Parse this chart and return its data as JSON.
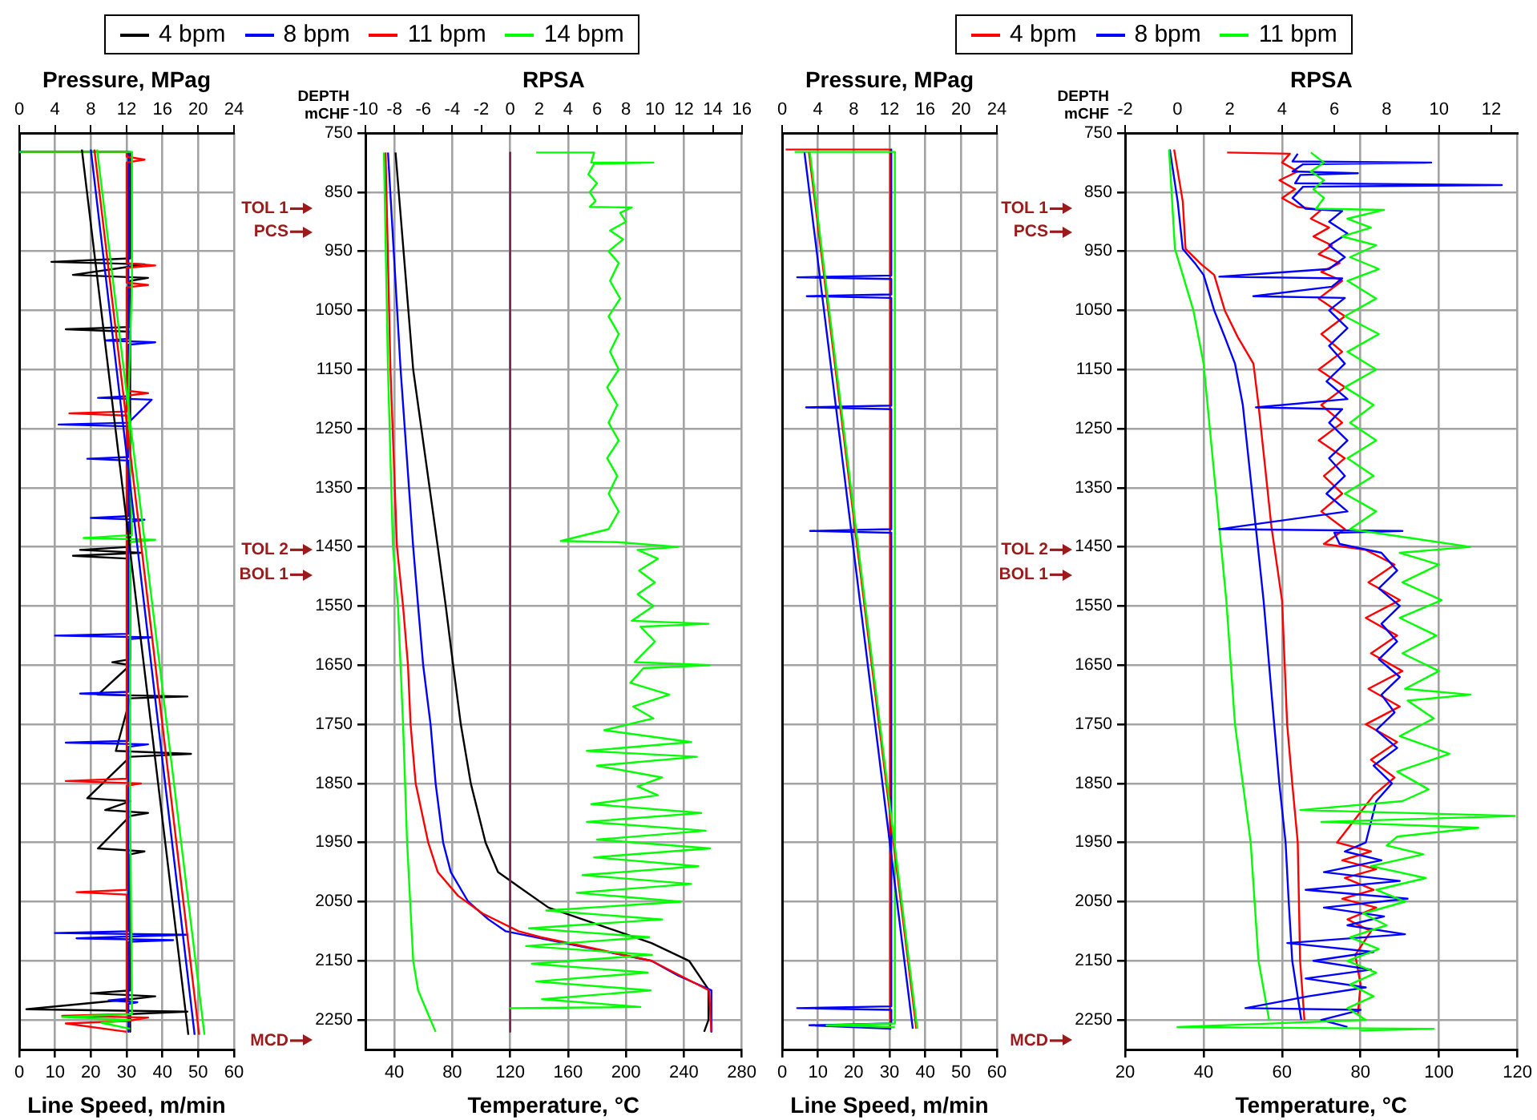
{
  "chart_data": [
    {
      "type": "line",
      "xlabel": "Line Speed, m/min",
      "x2label": "Pressure, MPag",
      "xlim": [
        0,
        60
      ],
      "xticks": [
        0,
        10,
        20,
        30,
        40,
        50,
        60
      ],
      "x2lim": [
        0,
        24
      ],
      "x2ticks": [
        0,
        4,
        8,
        12,
        16,
        20,
        24
      ],
      "ylim": [
        2300,
        750
      ],
      "yticks": [
        750,
        850,
        950,
        1050,
        1150,
        1250,
        1350,
        1450,
        1550,
        1650,
        1750,
        1850,
        1950,
        2050,
        2150,
        2250
      ],
      "grid": true,
      "legend": "top",
      "tick_labels": "x",
      "series": [
        {
          "name": "4 bpm",
          "color": "#000000",
          "x": [
            0,
            31,
            31,
            9,
            35,
            31,
            15,
            36,
            31,
            31,
            13,
            31,
            31,
            17,
            34,
            15,
            31,
            31,
            26,
            31,
            22,
            47,
            31,
            27,
            48,
            31,
            19,
            31,
            24,
            36,
            31,
            22,
            35,
            31,
            31,
            20,
            38,
            31,
            2,
            47,
            31,
            31
          ],
          "values": [
            782,
            782,
            962,
            968,
            972,
            976,
            990,
            995,
            1000,
            1078,
            1082,
            1086,
            1450,
            1455,
            1460,
            1465,
            1470,
            1640,
            1645,
            1650,
            1700,
            1703,
            1706,
            1795,
            1800,
            1805,
            1875,
            1880,
            1895,
            1900,
            1905,
            1960,
            1965,
            1970,
            2200,
            2205,
            2210,
            2215,
            2232,
            2236,
            2240,
            2270
          ]
        },
        {
          "name": "8 bpm",
          "color": "#0000ff",
          "x": [
            0,
            30.5,
            30.5,
            24,
            38,
            30.5,
            30.5,
            22,
            37,
            30.5,
            11,
            30.5,
            30.5,
            19,
            30.5,
            30.5,
            20,
            35,
            30.5,
            30.5,
            10,
            37,
            30.5,
            30.5,
            17,
            30.5,
            30.5,
            13,
            36,
            30.5,
            30.5,
            10,
            47,
            30.5,
            16,
            43,
            30.5,
            30.5,
            25,
            33,
            30.5,
            30.5
          ],
          "values": [
            782,
            782,
            1098,
            1101,
            1104,
            1108,
            1195,
            1198,
            1201,
            1240,
            1243,
            1246,
            1298,
            1301,
            1304,
            1398,
            1401,
            1404,
            1408,
            1597,
            1600,
            1603,
            1606,
            1695,
            1698,
            1701,
            1778,
            1781,
            1784,
            1788,
            2100,
            2103,
            2106,
            2109,
            2112,
            2115,
            2118,
            2214,
            2217,
            2220,
            2223,
            2270
          ]
        },
        {
          "name": "11 bpm",
          "color": "#ff0000",
          "x": [
            1,
            30,
            30,
            35,
            30,
            30,
            38,
            30,
            30,
            36,
            30,
            30,
            36,
            30,
            30,
            14,
            30,
            30,
            13,
            34,
            30,
            30,
            16,
            30,
            30,
            12,
            36,
            30,
            13,
            30
          ],
          "values": [
            782,
            782,
            790,
            795,
            800,
            970,
            974,
            978,
            1003,
            1007,
            1011,
            1186,
            1190,
            1194,
            1221,
            1224,
            1228,
            1842,
            1846,
            1850,
            1854,
            2030,
            2034,
            2038,
            2240,
            2243,
            2246,
            2252,
            2256,
            2270
          ]
        },
        {
          "name": "14 bpm",
          "color": "#00ff00",
          "x": [
            0,
            31.5,
            31.5,
            30.5,
            31.5,
            18,
            38,
            31,
            31,
            31.5,
            12,
            31,
            23,
            31
          ],
          "values": [
            782,
            782,
            1000,
            1200,
            1430,
            1435,
            1438,
            1442,
            1900,
            2240,
            2245,
            2250,
            2255,
            2265
          ]
        },
        {
          "color": "#000000",
          "axis": "x2",
          "x": [
            7.0,
            18.9
          ],
          "values": [
            778,
            2275
          ]
        },
        {
          "color": "#0000ff",
          "axis": "x2",
          "x": [
            8.0,
            19.6
          ],
          "values": [
            778,
            2275
          ]
        },
        {
          "color": "#ff0000",
          "axis": "x2",
          "x": [
            8.4,
            20.1
          ],
          "values": [
            778,
            2275
          ]
        },
        {
          "color": "#00ff00",
          "axis": "x2",
          "x": [
            8.7,
            20.7
          ],
          "values": [
            778,
            2275
          ]
        }
      ]
    },
    {
      "type": "line",
      "xlabel": "Temperature, °C",
      "x2label": "RPSA",
      "ylabel": "DEPTH mCHF",
      "xlim": [
        20,
        280
      ],
      "xticks": [
        40,
        80,
        120,
        160,
        200,
        240,
        280
      ],
      "x2lim": [
        -10,
        16
      ],
      "x2ticks": [
        -10,
        -8,
        -6,
        -4,
        -2,
        0,
        2,
        4,
        6,
        8,
        10,
        12,
        14,
        16
      ],
      "ylim": [
        2300,
        750
      ],
      "yticks": [
        750,
        850,
        950,
        1050,
        1150,
        1250,
        1350,
        1450,
        1550,
        1650,
        1750,
        1850,
        1950,
        2050,
        2150,
        2250
      ],
      "grid": true,
      "ref_lines": [
        {
          "axis": "y",
          "value": 878,
          "label": "TOL 1",
          "color": "#9b1b1b"
        },
        {
          "axis": "y",
          "value": 917,
          "label": "PCS",
          "color": "#9b1b1b"
        },
        {
          "axis": "y",
          "value": 1455,
          "label": "TOL 2",
          "color": "#9b1b1b"
        },
        {
          "axis": "y",
          "value": 1497,
          "label": "BOL 1",
          "color": "#9b1b1b"
        },
        {
          "axis": "y",
          "value": 2285,
          "label": "MCD",
          "color": "#9b1b1b"
        }
      ],
      "series": [
        {
          "color": "#000000",
          "x": [
            40.8,
            53,
            70,
            75.5,
            80.6,
            85.9,
            92.8,
            103,
            111.6,
            129,
            146.5,
            217.6,
            243.6,
            257.4,
            257,
            254
          ],
          "values": [
            783,
            1150,
            1450,
            1550,
            1650,
            1750,
            1850,
            1950,
            2000,
            2030,
            2060,
            2120,
            2150,
            2200,
            2250,
            2270
          ]
        },
        {
          "color": "#0000ff",
          "x": [
            35.6,
            44.3,
            53,
            56.4,
            59.9,
            65,
            68.5,
            73.7,
            79,
            91,
            105,
            117,
            217.6,
            236,
            259,
            259
          ],
          "values": [
            783,
            1150,
            1450,
            1550,
            1650,
            1750,
            1850,
            1950,
            2000,
            2050,
            2080,
            2100,
            2150,
            2175,
            2200,
            2270
          ]
        },
        {
          "color": "#ff0000",
          "x": [
            33.9,
            37.3,
            41.8,
            46,
            49.4,
            51.2,
            54.7,
            63.4,
            70,
            84,
            101,
            125.8,
            141,
            217.6,
            257.4,
            259
          ],
          "values": [
            783,
            1150,
            1450,
            1550,
            1650,
            1750,
            1850,
            1950,
            2000,
            2040,
            2070,
            2100,
            2110,
            2150,
            2200,
            2270
          ]
        },
        {
          "color": "#00ff00",
          "x": [
            32.8,
            35.6,
            39,
            42.5,
            46,
            48.8,
            53,
            56.4,
            65,
            68.5
          ],
          "values": [
            783,
            1150,
            1450,
            1550,
            1750,
            1950,
            2150,
            2200,
            2250,
            2270
          ]
        },
        {
          "color": "#7a1a4a",
          "axis": "x2",
          "x": [
            0,
            0
          ],
          "values": [
            783,
            2270
          ]
        },
        {
          "color": "#00ff00",
          "axis": "x2",
          "x": [
            1.8,
            5.8,
            5.6,
            9.9,
            5.8,
            5.4,
            6.0,
            5.5,
            5.9,
            5.5,
            8.4,
            7.6,
            8.0,
            6.9,
            7.8,
            6.8,
            7.5,
            6.9,
            7.6,
            6.8,
            7.5,
            6.9,
            7.5,
            6.7,
            7.4,
            6.8,
            7.5,
            6.7,
            7.4,
            6.8,
            7.5,
            6.8,
            3.5,
            7.4,
            11.6,
            8.8,
            10.2,
            8.9,
            10.0,
            8.8,
            9.9,
            8.4,
            13.7,
            9.0,
            10.0,
            8.6,
            13.8,
            9.2,
            8.3,
            11.0,
            8.5,
            9.9,
            6.5,
            12.5,
            5.3,
            12.9,
            6.0,
            10.5,
            8.8,
            10.2,
            5.6,
            13.2,
            5.3,
            13.5,
            6.0,
            13.8,
            5.8,
            13.0,
            5.0,
            12.5,
            4.6,
            11.8,
            2.5,
            10.5,
            1.3,
            9.6,
            1.1,
            9.8,
            1.5,
            9.5,
            1.8,
            9.7,
            2.2,
            9.0,
            0,
            4.0
          ],
          "values": [
            783,
            783,
            800,
            800,
            802,
            820,
            835,
            850,
            865,
            875,
            876,
            885,
            900,
            915,
            930,
            950,
            970,
            1000,
            1030,
            1060,
            1090,
            1120,
            1150,
            1180,
            1210,
            1240,
            1270,
            1300,
            1330,
            1360,
            1390,
            1420,
            1440,
            1442,
            1450,
            1455,
            1470,
            1490,
            1510,
            1530,
            1550,
            1575,
            1580,
            1585,
            1610,
            1645,
            1650,
            1655,
            1680,
            1700,
            1720,
            1740,
            1760,
            1780,
            1795,
            1805,
            1820,
            1840,
            1855,
            1870,
            1885,
            1900,
            1915,
            1930,
            1945,
            1960,
            1975,
            1990,
            2005,
            2020,
            2035,
            2050,
            2065,
            2080,
            2095,
            2110,
            2125,
            2140,
            2155,
            2170,
            2185,
            2200,
            2215,
            2228,
            2230,
            2230
          ]
        }
      ]
    },
    {
      "type": "line",
      "xlabel": "Line Speed, m/min",
      "x2label": "Pressure, MPag",
      "xlim": [
        0,
        60
      ],
      "xticks": [
        0,
        10,
        20,
        30,
        40,
        50,
        60
      ],
      "x2lim": [
        0,
        24
      ],
      "x2ticks": [
        0,
        4,
        8,
        12,
        16,
        20,
        24
      ],
      "ylim": [
        2300,
        750
      ],
      "yticks": [
        750,
        850,
        950,
        1050,
        1150,
        1250,
        1350,
        1450,
        1550,
        1650,
        1750,
        1850,
        1950,
        2050,
        2150,
        2250
      ],
      "grid": true,
      "legend": "top",
      "tick_labels": "x",
      "series": [
        {
          "name": "4 bpm",
          "color": "#ff0000",
          "x": [
            1,
            30.2,
            30.2
          ],
          "values": [
            778,
            778,
            2265
          ]
        },
        {
          "name": "8 bpm",
          "color": "#0000ff",
          "x": [
            30.5,
            30.5,
            4.2,
            30.5,
            30.5,
            6.9,
            30.5,
            30.5,
            6.7,
            30.5,
            30.5,
            7.8,
            30.5,
            30.5,
            4.2,
            30.5,
            30.5,
            7.6,
            30.5
          ],
          "values": [
            778,
            991,
            994,
            997,
            1023,
            1026,
            1029,
            1211,
            1214,
            1217,
            1420,
            1423,
            1426,
            2227,
            2230,
            2233,
            2256,
            2259,
            2265
          ]
        },
        {
          "name": "11 bpm",
          "color": "#00ff00",
          "x": [
            3.5,
            31.5,
            31.5,
            12.4,
            31.5
          ],
          "values": [
            782,
            782,
            2256,
            2259,
            2262
          ]
        },
        {
          "color": "#ff0000",
          "axis": "x2",
          "x": [
            3.0,
            15.0
          ],
          "values": [
            783,
            2265
          ]
        },
        {
          "color": "#0000ff",
          "axis": "x2",
          "x": [
            2.5,
            14.6
          ],
          "values": [
            783,
            2265
          ]
        },
        {
          "color": "#00ff00",
          "axis": "x2",
          "x": [
            3.1,
            15.1
          ],
          "values": [
            783,
            2265
          ]
        }
      ]
    },
    {
      "type": "line",
      "xlabel": "Temperature, °C",
      "x2label": "RPSA",
      "ylabel": "DEPTH mCHF",
      "xlim": [
        20,
        120
      ],
      "xticks": [
        20,
        40,
        60,
        80,
        100,
        120
      ],
      "x2lim": [
        -2,
        13
      ],
      "x2ticks": [
        -2,
        0,
        2,
        4,
        6,
        8,
        10,
        12
      ],
      "ylim": [
        2300,
        750
      ],
      "yticks": [
        750,
        850,
        950,
        1050,
        1150,
        1250,
        1350,
        1450,
        1550,
        1650,
        1750,
        1850,
        1950,
        2050,
        2150,
        2250
      ],
      "grid": true,
      "ref_lines": [
        {
          "axis": "y",
          "value": 878,
          "label": "TOL 1",
          "color": "#9b1b1b"
        },
        {
          "axis": "y",
          "value": 917,
          "label": "PCS",
          "color": "#9b1b1b"
        },
        {
          "axis": "y",
          "value": 1455,
          "label": "TOL 2",
          "color": "#9b1b1b"
        },
        {
          "axis": "y",
          "value": 1497,
          "label": "BOL 1",
          "color": "#9b1b1b"
        },
        {
          "axis": "y",
          "value": 2285,
          "label": "MCD",
          "color": "#9b1b1b"
        }
      ],
      "series": [
        {
          "color": "#ff0000",
          "x": [
            32.5,
            34.7,
            35.4,
            39.4,
            42.7,
            45.4,
            48.7,
            52.7,
            54,
            57.3,
            60,
            61.3,
            62.6,
            64,
            64.6,
            65.7
          ],
          "values": [
            778,
            866,
            946,
            972,
            990,
            1050,
            1095,
            1140,
            1210,
            1416,
            1541,
            1750,
            1850,
            1950,
            2150,
            2250
          ]
        },
        {
          "color": "#0000ff",
          "x": [
            31.4,
            33.4,
            34.7,
            38,
            40,
            42.7,
            45.4,
            48,
            50,
            53.3,
            55.3,
            58,
            59.3,
            60.9,
            61.7,
            62.6,
            64.9
          ],
          "values": [
            778,
            866,
            946,
            972,
            990,
            1050,
            1095,
            1140,
            1210,
            1416,
            1541,
            1750,
            1850,
            1950,
            2050,
            2150,
            2250
          ]
        },
        {
          "color": "#00ff00",
          "x": [
            31.2,
            32.7,
            37.4,
            40,
            45.8,
            48,
            52,
            54,
            56.7
          ],
          "values": [
            778,
            946,
            1050,
            1140,
            1541,
            1750,
            1950,
            2150,
            2250
          ]
        },
        {
          "color": "#ff0000",
          "axis": "x2",
          "x": [
            1.9,
            4.3,
            4.0,
            4.6,
            3.9,
            4.5,
            4.0,
            4.6,
            5.5,
            5.1,
            5.8,
            5.2,
            5.9,
            5.4,
            6.2,
            5.5,
            6.3,
            5.4,
            6.4,
            5.5,
            6.3,
            5.4,
            6.4,
            5.5,
            6.3,
            5.4,
            6.4,
            5.6,
            6.3,
            5.5,
            6.4,
            5.6,
            7.2,
            8.3,
            7.3,
            8.5,
            7.2,
            8.4,
            7.4,
            8.6,
            7.3,
            8.5,
            7.2,
            8.4,
            7.4,
            8.3,
            7.5,
            6.1,
            7.4,
            6.3,
            7.6,
            6.4,
            7.5,
            6.3,
            7.6,
            6.5,
            7.4,
            6.8,
            7.0,
            6.9
          ],
          "values": [
            783,
            785,
            800,
            815,
            830,
            845,
            860,
            875,
            880,
            895,
            910,
            925,
            940,
            955,
            970,
            985,
            1000,
            1030,
            1060,
            1090,
            1120,
            1150,
            1180,
            1210,
            1240,
            1270,
            1300,
            1330,
            1360,
            1390,
            1420,
            1445,
            1455,
            1480,
            1510,
            1540,
            1570,
            1600,
            1630,
            1660,
            1690,
            1720,
            1750,
            1780,
            1810,
            1840,
            1870,
            1950,
            1965,
            1980,
            1995,
            2010,
            2030,
            2045,
            2060,
            2080,
            2100,
            2140,
            2190,
            2240
          ]
        },
        {
          "color": "#0000ff",
          "axis": "x2",
          "x": [
            4.6,
            4.4,
            9.7,
            4.8,
            4.4,
            6.9,
            4.7,
            4.5,
            12.4,
            4.8,
            4.4,
            4.9,
            6.3,
            5.8,
            6.5,
            5.8,
            6.4,
            5.8,
            1.6,
            6.3,
            5.9,
            2.9,
            6.4,
            5.8,
            6.5,
            5.8,
            6.4,
            5.7,
            6.5,
            3.0,
            6.3,
            5.8,
            6.5,
            5.8,
            6.4,
            5.7,
            6.5,
            1.6,
            8.6,
            6.0,
            6.2,
            7.8,
            8.4,
            7.7,
            8.5,
            7.8,
            8.4,
            7.7,
            8.5,
            7.8,
            8.3,
            7.6,
            8.4,
            7.5,
            8.2,
            7.6,
            7.2,
            6.4,
            7.8,
            5.6,
            8.5,
            4.9,
            8.8,
            5.6,
            7.9,
            6.5,
            8.7,
            4.2,
            7.5,
            5.2,
            7.4,
            4.9,
            7.2,
            5.0,
            2.6,
            7.0,
            5.5,
            6.5
          ],
          "values": [
            785,
            798,
            800,
            803,
            815,
            818,
            821,
            835,
            838,
            841,
            860,
            878,
            882,
            900,
            920,
            940,
            960,
            980,
            993,
            996,
            1010,
            1026,
            1029,
            1050,
            1080,
            1110,
            1140,
            1170,
            1200,
            1214,
            1217,
            1240,
            1270,
            1300,
            1330,
            1360,
            1390,
            1420,
            1423,
            1426,
            1445,
            1460,
            1490,
            1520,
            1550,
            1580,
            1610,
            1640,
            1670,
            1700,
            1730,
            1760,
            1790,
            1820,
            1850,
            1880,
            1950,
            1965,
            1980,
            2000,
            2015,
            2030,
            2045,
            2060,
            2075,
            2090,
            2105,
            2120,
            2135,
            2150,
            2165,
            2180,
            2195,
            2210,
            2230,
            2233,
            2250,
            2262
          ]
        },
        {
          "color": "#00ff00",
          "axis": "x2",
          "x": [
            5.1,
            5.6,
            5.1,
            5.6,
            5.2,
            5.6,
            5.3,
            7.9,
            6.5,
            7.4,
            6.3,
            7.6,
            6.6,
            7.7,
            6.5,
            7.6,
            6.4,
            7.7,
            6.5,
            7.6,
            6.4,
            7.5,
            6.6,
            7.6,
            6.5,
            7.5,
            6.4,
            7.6,
            6.6,
            11.2,
            8.5,
            10.0,
            8.6,
            10.1,
            8.5,
            9.9,
            8.6,
            10.0,
            8.7,
            11.2,
            8.8,
            9.8,
            8.5,
            10.4,
            8.4,
            9.6,
            8.6,
            4.7,
            12.9,
            5.5,
            11.5,
            8.4,
            8.0,
            9.4,
            7.4,
            9.5,
            7.6,
            8.7,
            7.1,
            8.0,
            6.6,
            7.7,
            6.5,
            7.6,
            6.6,
            7.5,
            6.5,
            7.2,
            0.0,
            9.8,
            7.0
          ],
          "values": [
            783,
            800,
            815,
            830,
            845,
            860,
            878,
            880,
            895,
            910,
            925,
            940,
            960,
            980,
            1000,
            1030,
            1060,
            1090,
            1120,
            1150,
            1180,
            1210,
            1240,
            1270,
            1300,
            1330,
            1360,
            1390,
            1420,
            1450,
            1460,
            1480,
            1510,
            1540,
            1570,
            1600,
            1630,
            1660,
            1690,
            1700,
            1710,
            1740,
            1770,
            1800,
            1830,
            1860,
            1880,
            1895,
            1905,
            1915,
            1925,
            1940,
            1955,
            1970,
            1990,
            2010,
            2030,
            2050,
            2070,
            2090,
            2110,
            2130,
            2150,
            2170,
            2190,
            2210,
            2230,
            2250,
            2262,
            2265,
            2268
          ]
        }
      ]
    }
  ]
}
